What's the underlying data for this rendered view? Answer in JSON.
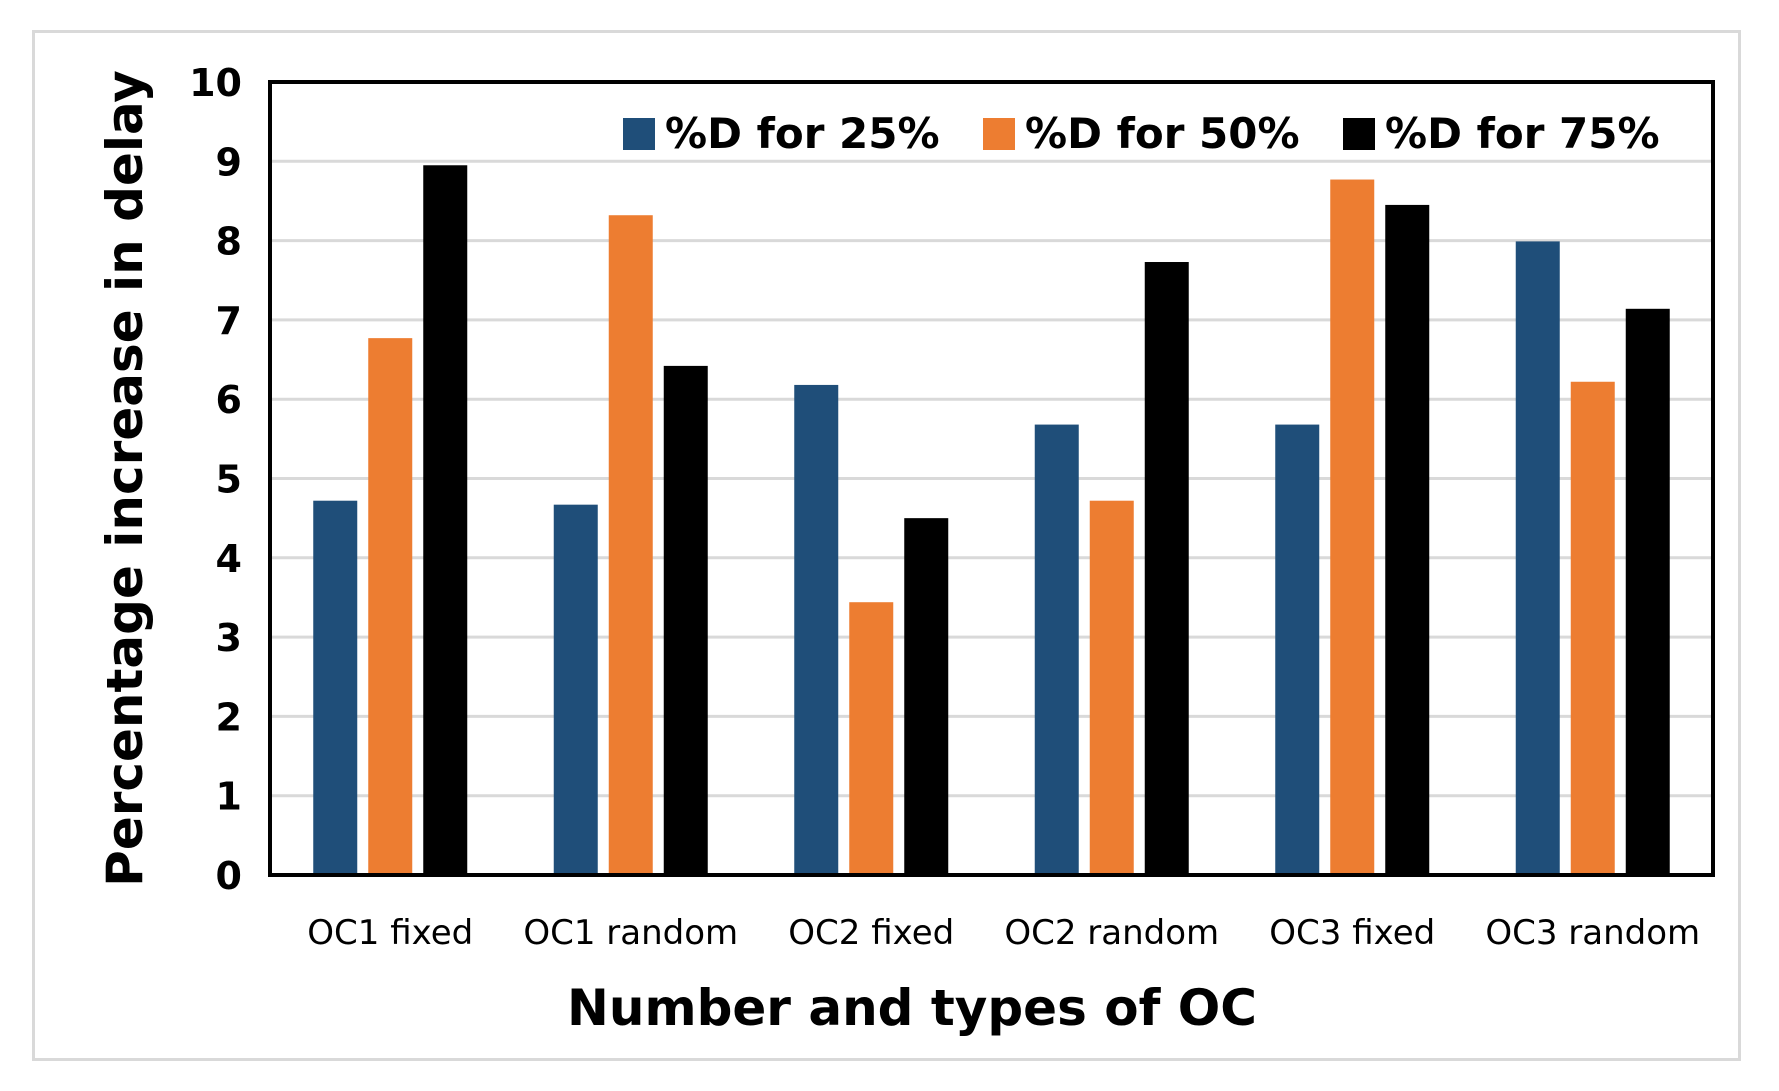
{
  "chart_data": {
    "type": "bar",
    "title": "",
    "xlabel": "Number and types of OC",
    "ylabel": "Percentage increase in delay",
    "ylim": [
      0,
      10
    ],
    "yticks": [
      "0",
      "1",
      "2",
      "3",
      "4",
      "5",
      "6",
      "7",
      "8",
      "9",
      "10"
    ],
    "grid": true,
    "legend_position": "top-right",
    "categories": [
      "OC1 fixed",
      "OC1 random",
      "OC2 fixed",
      "OC2 random",
      "OC3 fixed",
      "OC3 random"
    ],
    "series": [
      {
        "name": "%D for 25%",
        "color": "#1f4e79",
        "values": [
          4.72,
          4.67,
          6.18,
          5.68,
          5.68,
          7.99
        ]
      },
      {
        "name": "%D for 50%",
        "color": "#ed7d31",
        "values": [
          6.77,
          8.32,
          3.44,
          4.72,
          8.77,
          6.22
        ]
      },
      {
        "name": "%D for 75%",
        "color": "#000000",
        "values": [
          8.95,
          6.42,
          4.5,
          7.73,
          8.45,
          7.14
        ]
      }
    ]
  }
}
